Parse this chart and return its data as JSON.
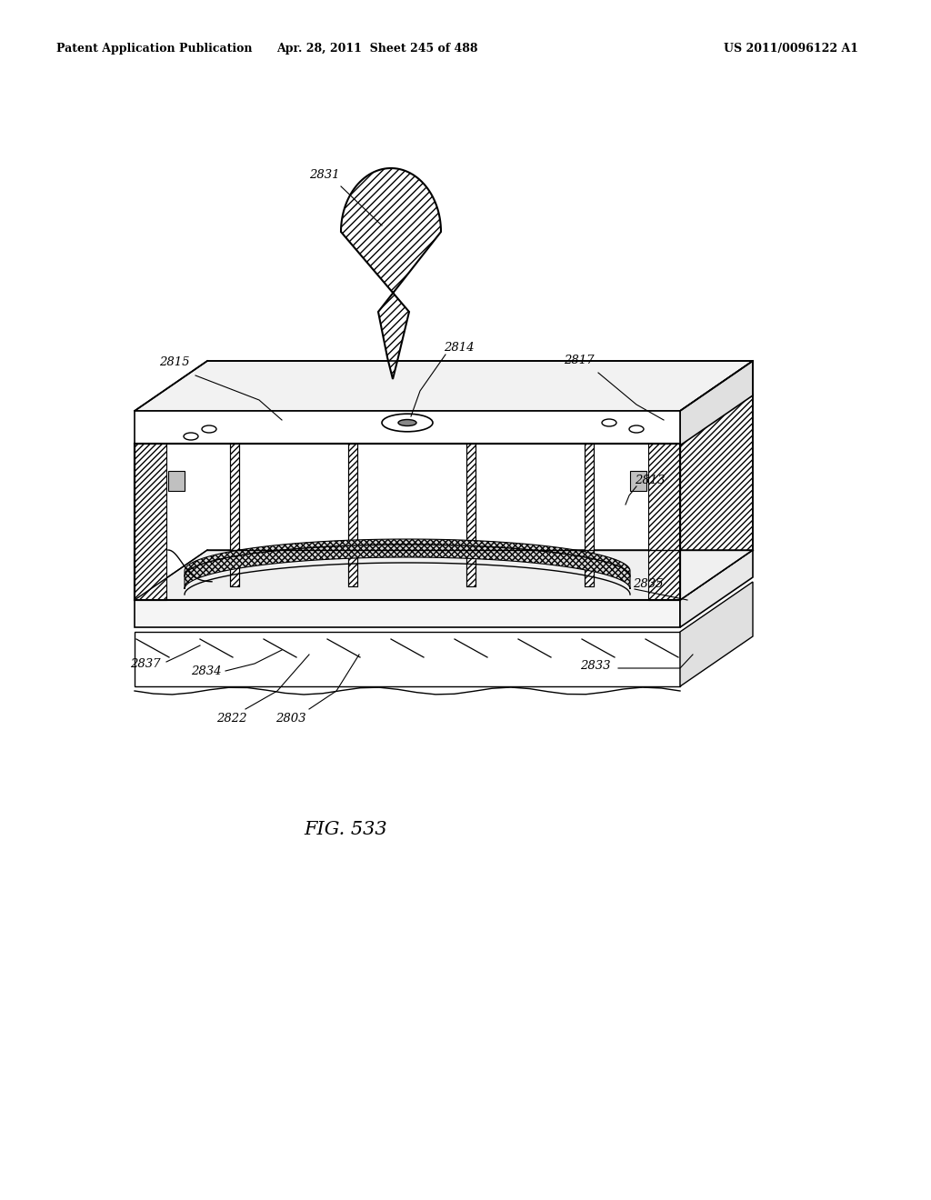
{
  "header_left": "Patent Application Publication",
  "header_mid": "Apr. 28, 2011  Sheet 245 of 488",
  "header_right": "US 2011/0096122 A1",
  "figure_label": "FIG. 533",
  "bg_color": "#ffffff",
  "line_color": "#000000",
  "gray_light": "#e8e8e8",
  "gray_mid": "#d0d0d0",
  "gray_dark": "#b0b0b0"
}
